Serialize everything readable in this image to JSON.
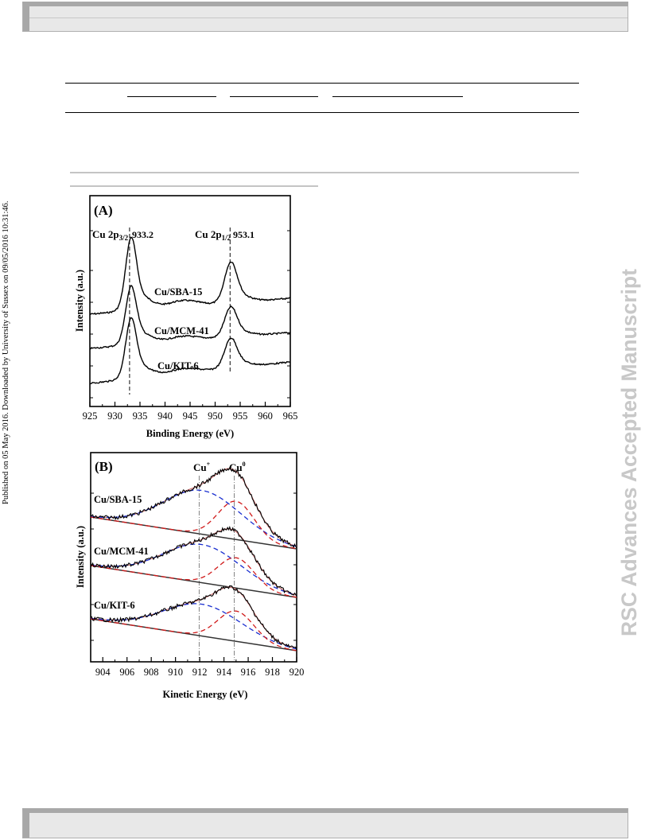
{
  "side_note": "Published on 05 May 2016. Downloaded by University of Sussex on 09/05/2016 10:31:46.",
  "watermark": "RSC Advances Accepted Manuscript",
  "panelA": {
    "label": "(A)",
    "xlabel": "Binding Energy (eV)",
    "ylabel": "Intensity (a.u.)",
    "ticks": [
      "925",
      "930",
      "935",
      "940",
      "945",
      "950",
      "955",
      "960",
      "965"
    ],
    "peak1_label": "Cu 2p",
    "peak1_sub": "3/2",
    "peak1_value": "933.2",
    "peak2_label": "Cu 2p",
    "peak2_sub": "1/2",
    "peak2_value": "953.1",
    "series": [
      "Cu/SBA-15",
      "Cu/MCM-41",
      "Cu/KIT-6"
    ]
  },
  "panelB": {
    "label": "(B)",
    "xlabel": "Kinetic Energy (eV)",
    "ylabel": "Intensity (a.u.)",
    "ticks": [
      "904",
      "906",
      "908",
      "910",
      "912",
      "914",
      "916",
      "918",
      "920"
    ],
    "cu_plus": "Cu",
    "cu_plus_sup": "+",
    "cu_zero": "Cu",
    "cu_zero_sup": "0",
    "series": [
      "Cu/SBA-15",
      "Cu/MCM-41",
      "Cu/KIT-6"
    ]
  },
  "colors": {
    "raw": "#000000",
    "baseline": "#333333",
    "cu_plus_fit": "#1a2fd0",
    "cu_zero_fit": "#d01a1a",
    "envelope": "#d07070"
  },
  "chart_data": [
    {
      "type": "line",
      "title": "(A)",
      "xlabel": "Binding Energy (eV)",
      "ylabel": "Intensity (a.u.)",
      "xlim": [
        925,
        965
      ],
      "xticks": [
        925,
        930,
        935,
        940,
        945,
        950,
        955,
        960,
        965
      ],
      "annotations": [
        {
          "text": "Cu 2p3/2",
          "x": 933.2
        },
        {
          "text": "Cu 2p1/2",
          "x": 953.1
        }
      ],
      "series": [
        {
          "name": "Cu/SBA-15",
          "peaks_x": [
            933.2,
            953.1
          ]
        },
        {
          "name": "Cu/MCM-41",
          "peaks_x": [
            933.2,
            953.1
          ]
        },
        {
          "name": "Cu/KIT-6",
          "peaks_x": [
            933.2,
            953.1
          ]
        }
      ],
      "grid": false
    },
    {
      "type": "line",
      "title": "(B)",
      "xlabel": "Kinetic Energy (eV)",
      "ylabel": "Intensity (a.u.)",
      "xlim": [
        903,
        920
      ],
      "xticks": [
        904,
        906,
        908,
        910,
        912,
        914,
        916,
        918,
        920
      ],
      "annotations": [
        {
          "text": "Cu+",
          "x": 912.2
        },
        {
          "text": "Cu0",
          "x": 915.1
        }
      ],
      "series": [
        {
          "name": "Cu/SBA-15",
          "components_center_x": [
            912.2,
            915.1
          ]
        },
        {
          "name": "Cu/MCM-41",
          "components_center_x": [
            912.2,
            915.1
          ]
        },
        {
          "name": "Cu/KIT-6",
          "components_center_x": [
            912.2,
            915.1
          ]
        }
      ],
      "grid": false
    }
  ]
}
